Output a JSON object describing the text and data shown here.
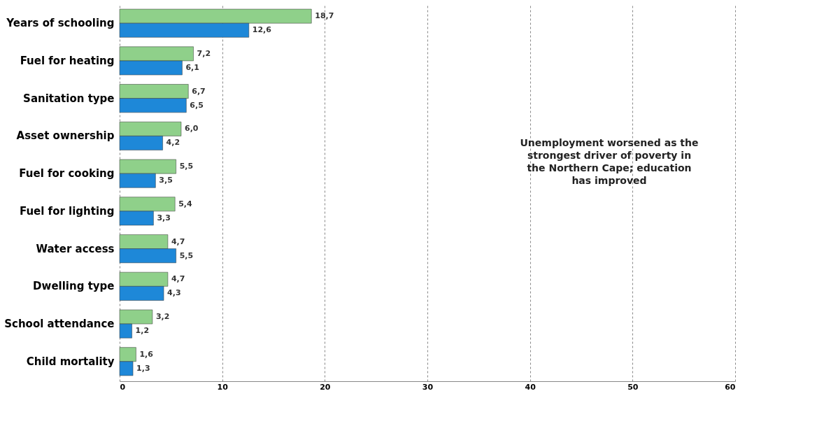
{
  "chart_data": {
    "type": "bar",
    "orientation": "horizontal",
    "categories": [
      "Years of schooling",
      "Fuel for heating",
      "Sanitation type",
      "Asset ownership",
      "Fuel for cooking",
      "Fuel for lighting",
      "Water access",
      "Dwelling type",
      "School attendance",
      "Child mortality"
    ],
    "series": [
      {
        "color": "#8fd08a",
        "values": [
          18.7,
          7.2,
          6.7,
          6.0,
          5.5,
          5.4,
          4.7,
          4.7,
          3.2,
          1.6
        ],
        "value_labels": [
          "18,7",
          "7,2",
          "6,7",
          "6,0",
          "5,5",
          "5,4",
          "4,7",
          "4,7",
          "3,2",
          "1,6"
        ]
      },
      {
        "color": "#1e88d8",
        "values": [
          12.6,
          6.1,
          6.5,
          4.2,
          3.5,
          3.3,
          5.5,
          4.3,
          1.2,
          1.3
        ],
        "value_labels": [
          "12,6",
          "6,1",
          "6,5",
          "4,2",
          "3,5",
          "3,3",
          "5,5",
          "4,3",
          "1,2",
          "1,3"
        ]
      }
    ],
    "xlim": [
      0,
      60
    ],
    "xticks": [
      0,
      10,
      20,
      30,
      40,
      50,
      60
    ],
    "grid": "x",
    "annotations": [
      "Unemployment worsened as the strongest driver of poverty in the Northern Cape; education has improved"
    ]
  }
}
